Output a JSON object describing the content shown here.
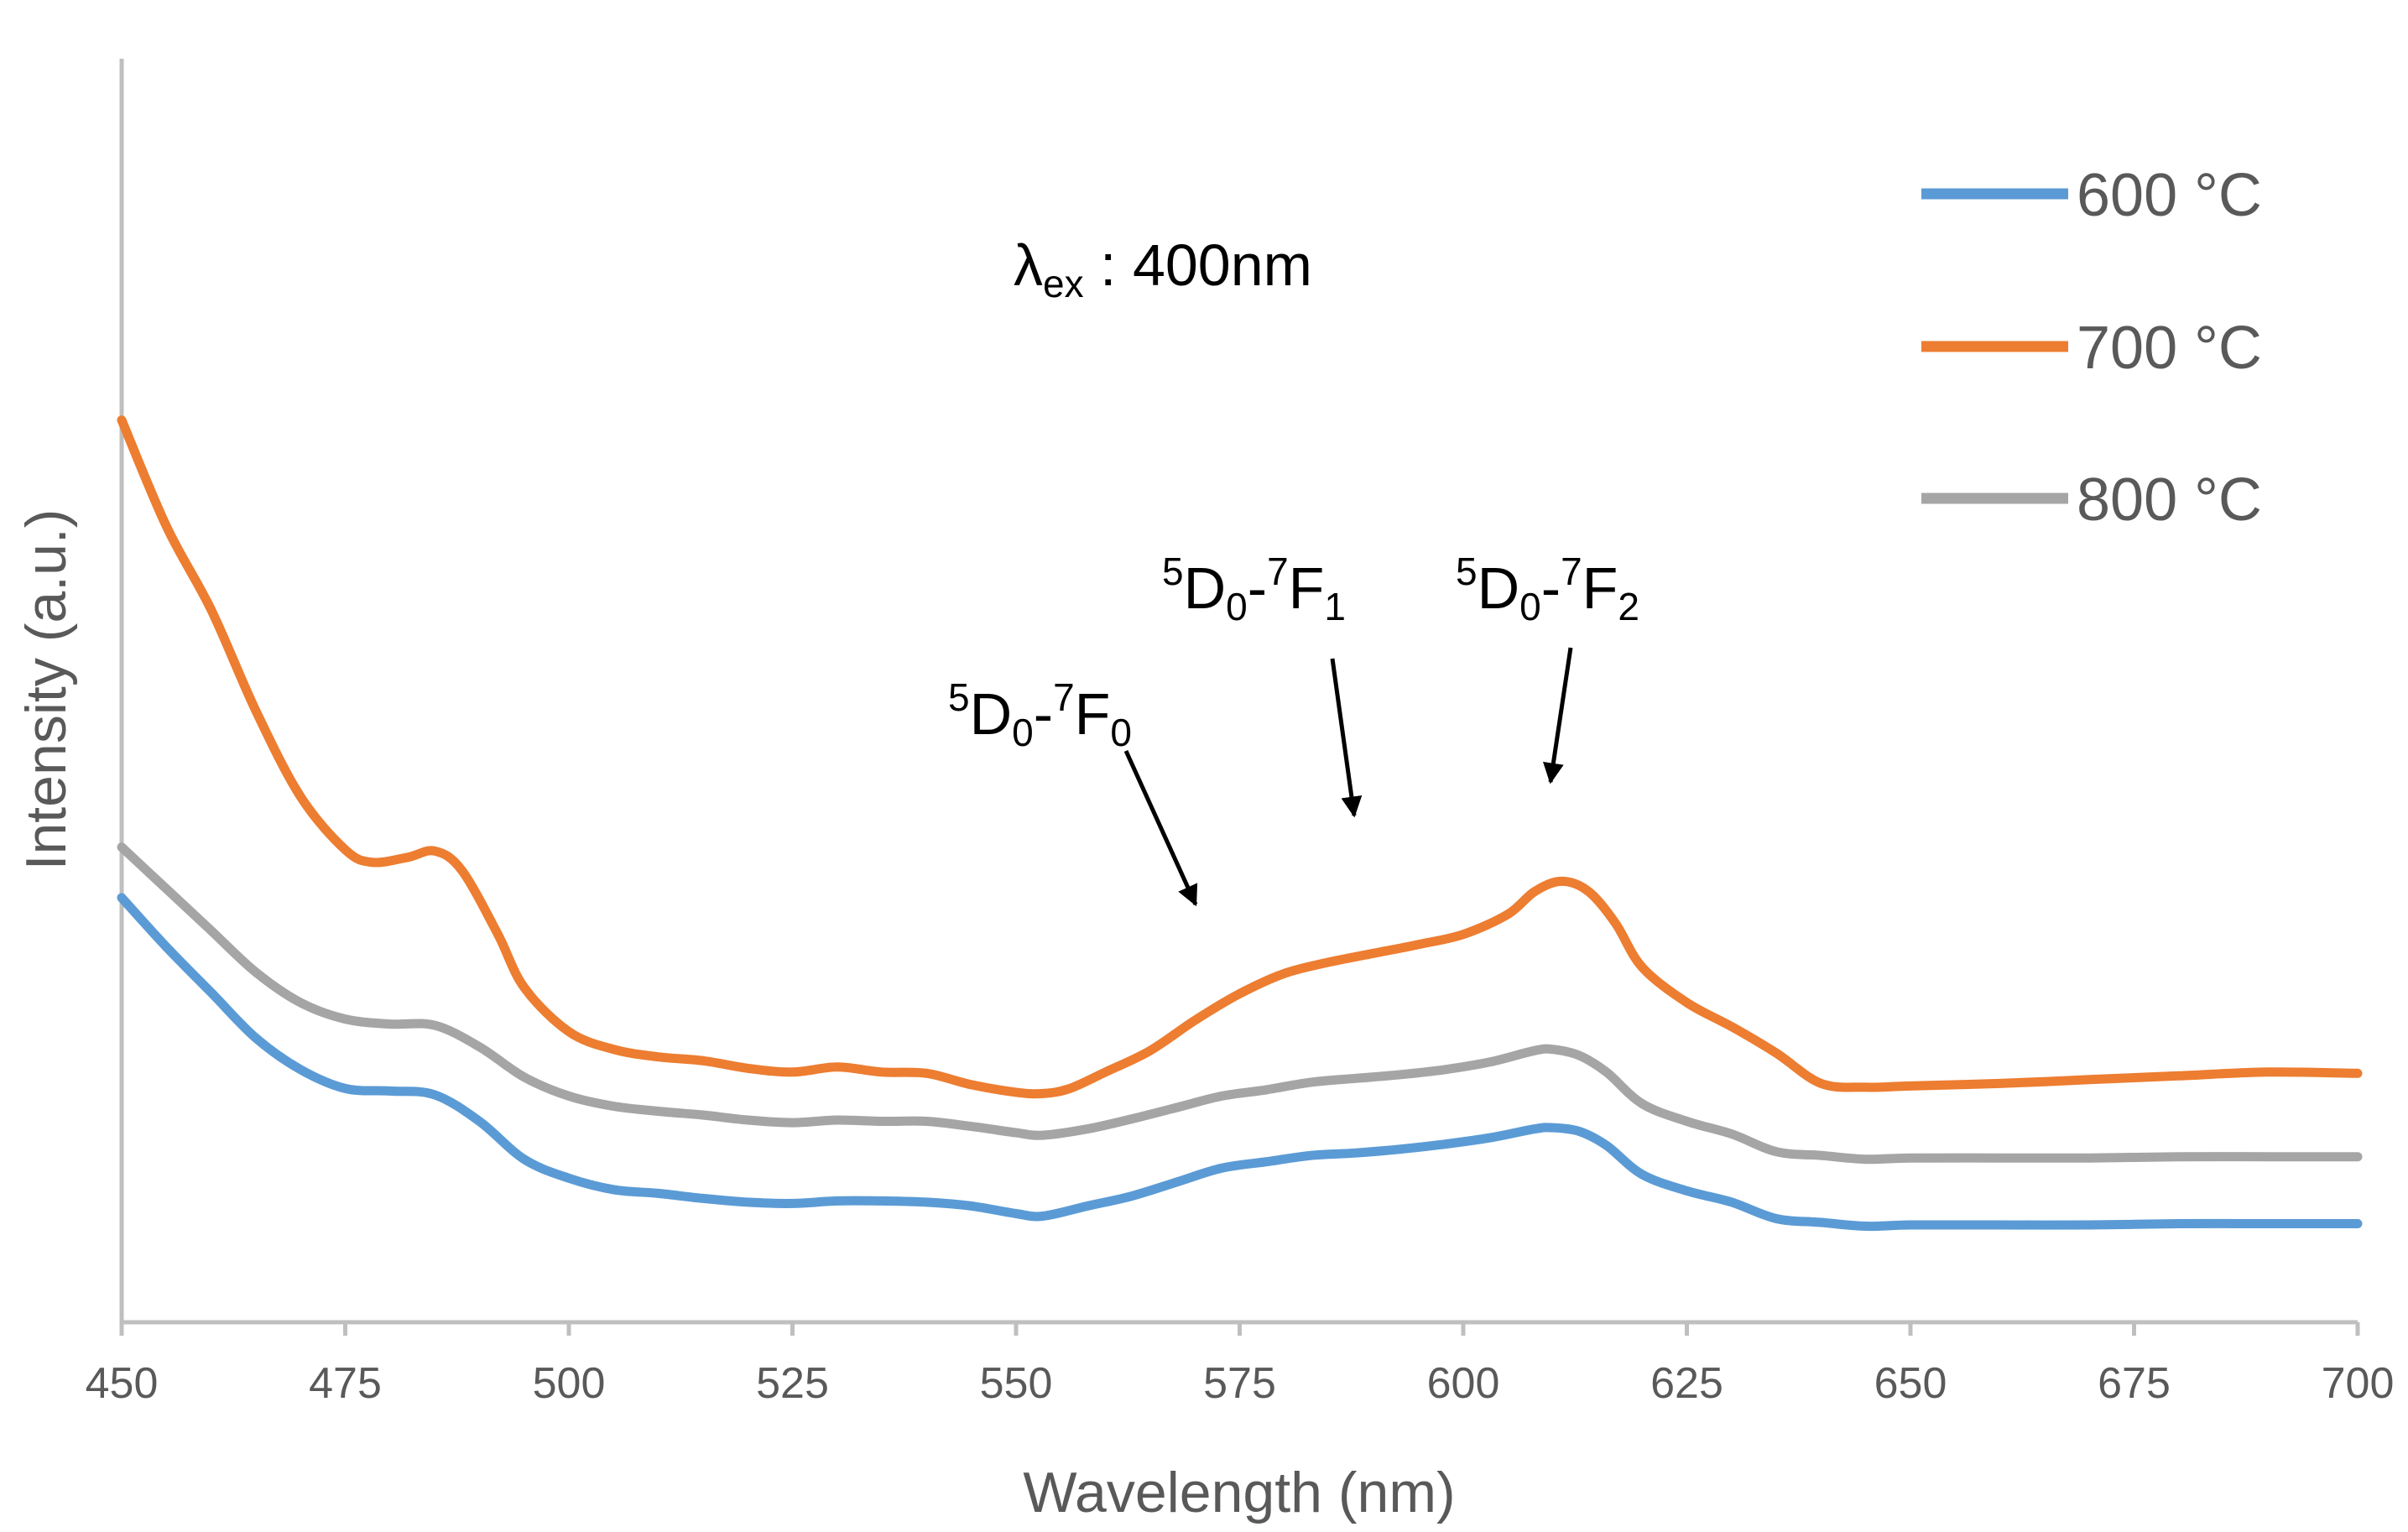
{
  "chart_data": {
    "type": "line",
    "title": "",
    "xlabel": "Wavelength (nm)",
    "ylabel": "Intensity (a.u.)",
    "xlim": [
      450,
      700
    ],
    "ylim": [
      0,
      100
    ],
    "x_ticks": [
      "450",
      "475",
      "500",
      "525",
      "550",
      "575",
      "600",
      "625",
      "650",
      "675",
      "700"
    ],
    "y_ticks_shown": false,
    "grid": false,
    "legend_position": "top-right",
    "series": [
      {
        "name": "600 °C",
        "color": "#5B9BD5",
        "points": [
          [
            450,
            33.6
          ],
          [
            455,
            29.7
          ],
          [
            460,
            26.1
          ],
          [
            465,
            22.5
          ],
          [
            470,
            20.0
          ],
          [
            475,
            18.5
          ],
          [
            480,
            18.3
          ],
          [
            485,
            18.0
          ],
          [
            490,
            15.9
          ],
          [
            495,
            12.9
          ],
          [
            500,
            11.4
          ],
          [
            505,
            10.5
          ],
          [
            510,
            10.2
          ],
          [
            515,
            9.8
          ],
          [
            520,
            9.5
          ],
          [
            525,
            9.4
          ],
          [
            530,
            9.6
          ],
          [
            535,
            9.6
          ],
          [
            540,
            9.5
          ],
          [
            545,
            9.2
          ],
          [
            550,
            8.6
          ],
          [
            553,
            8.4
          ],
          [
            558,
            9.2
          ],
          [
            563,
            10.0
          ],
          [
            568,
            11.1
          ],
          [
            573,
            12.2
          ],
          [
            578,
            12.7
          ],
          [
            583,
            13.2
          ],
          [
            588,
            13.4
          ],
          [
            593,
            13.7
          ],
          [
            598,
            14.1
          ],
          [
            603,
            14.6
          ],
          [
            608,
            15.3
          ],
          [
            610,
            15.4
          ],
          [
            613,
            15.1
          ],
          [
            616,
            14.0
          ],
          [
            620,
            11.7
          ],
          [
            625,
            10.4
          ],
          [
            630,
            9.5
          ],
          [
            635,
            8.2
          ],
          [
            640,
            7.9
          ],
          [
            645,
            7.6
          ],
          [
            650,
            7.7
          ],
          [
            660,
            7.7
          ],
          [
            670,
            7.7
          ],
          [
            680,
            7.8
          ],
          [
            690,
            7.8
          ],
          [
            700,
            7.8
          ]
        ]
      },
      {
        "name": "700 °C",
        "color": "#ED7D31",
        "points": [
          [
            450,
            71.4
          ],
          [
            455,
            63.0
          ],
          [
            460,
            56.4
          ],
          [
            465,
            48.4
          ],
          [
            470,
            41.6
          ],
          [
            475,
            37.4
          ],
          [
            478,
            36.4
          ],
          [
            482,
            36.8
          ],
          [
            485,
            37.3
          ],
          [
            488,
            35.8
          ],
          [
            492,
            30.8
          ],
          [
            495,
            26.5
          ],
          [
            500,
            23.0
          ],
          [
            505,
            21.6
          ],
          [
            510,
            21.0
          ],
          [
            515,
            20.7
          ],
          [
            520,
            20.1
          ],
          [
            525,
            19.8
          ],
          [
            530,
            20.2
          ],
          [
            535,
            19.8
          ],
          [
            540,
            19.7
          ],
          [
            545,
            18.8
          ],
          [
            550,
            18.2
          ],
          [
            553,
            18.1
          ],
          [
            556,
            18.5
          ],
          [
            560,
            19.8
          ],
          [
            565,
            21.5
          ],
          [
            570,
            23.9
          ],
          [
            575,
            26.0
          ],
          [
            580,
            27.6
          ],
          [
            585,
            28.5
          ],
          [
            590,
            29.2
          ],
          [
            595,
            29.9
          ],
          [
            600,
            30.7
          ],
          [
            605,
            32.3
          ],
          [
            608,
            34.1
          ],
          [
            611,
            34.9
          ],
          [
            614,
            34.1
          ],
          [
            617,
            31.6
          ],
          [
            620,
            28.1
          ],
          [
            625,
            25.3
          ],
          [
            630,
            23.4
          ],
          [
            635,
            21.3
          ],
          [
            640,
            18.9
          ],
          [
            645,
            18.6
          ],
          [
            650,
            18.7
          ],
          [
            660,
            18.9
          ],
          [
            670,
            19.2
          ],
          [
            680,
            19.5
          ],
          [
            690,
            19.8
          ],
          [
            700,
            19.7
          ]
        ]
      },
      {
        "name": "800 °C",
        "color": "#A5A5A5",
        "points": [
          [
            450,
            37.6
          ],
          [
            455,
            34.3
          ],
          [
            460,
            31.0
          ],
          [
            465,
            27.7
          ],
          [
            470,
            25.3
          ],
          [
            475,
            24.0
          ],
          [
            480,
            23.6
          ],
          [
            485,
            23.5
          ],
          [
            490,
            21.8
          ],
          [
            495,
            19.4
          ],
          [
            500,
            17.9
          ],
          [
            505,
            17.1
          ],
          [
            510,
            16.7
          ],
          [
            515,
            16.4
          ],
          [
            520,
            16.0
          ],
          [
            525,
            15.8
          ],
          [
            530,
            16.0
          ],
          [
            535,
            15.9
          ],
          [
            540,
            15.9
          ],
          [
            545,
            15.5
          ],
          [
            550,
            15.0
          ],
          [
            553,
            14.8
          ],
          [
            558,
            15.3
          ],
          [
            563,
            16.1
          ],
          [
            568,
            17.0
          ],
          [
            573,
            17.9
          ],
          [
            578,
            18.4
          ],
          [
            583,
            19.0
          ],
          [
            588,
            19.3
          ],
          [
            593,
            19.6
          ],
          [
            598,
            20.0
          ],
          [
            603,
            20.6
          ],
          [
            608,
            21.5
          ],
          [
            610,
            21.6
          ],
          [
            613,
            21.1
          ],
          [
            616,
            19.8
          ],
          [
            620,
            17.3
          ],
          [
            625,
            15.9
          ],
          [
            630,
            14.9
          ],
          [
            635,
            13.5
          ],
          [
            640,
            13.2
          ],
          [
            645,
            12.9
          ],
          [
            650,
            13.0
          ],
          [
            660,
            13.0
          ],
          [
            670,
            13.0
          ],
          [
            680,
            13.1
          ],
          [
            690,
            13.1
          ],
          [
            700,
            13.1
          ]
        ]
      }
    ],
    "annotations": [
      {
        "id": "ex",
        "prefix": "λ",
        "sub": "ex",
        "text": " : 400nm"
      },
      {
        "id": "f0",
        "sup1": "5",
        "main1": "D",
        "sub1": "0",
        "mid": "-",
        "sup2": "7",
        "main2": "F",
        "sub2": "0",
        "arrow_target_x": 571
      },
      {
        "id": "f1",
        "sup1": "5",
        "main1": "D",
        "sub1": "0",
        "mid": "-",
        "sup2": "7",
        "main2": "F",
        "sub2": "1",
        "arrow_target_x": 588
      },
      {
        "id": "f2",
        "sup1": "5",
        "main1": "D",
        "sub1": "0",
        "mid": "-",
        "sup2": "7",
        "main2": "F",
        "sub2": "2",
        "arrow_target_x": 611
      }
    ]
  }
}
